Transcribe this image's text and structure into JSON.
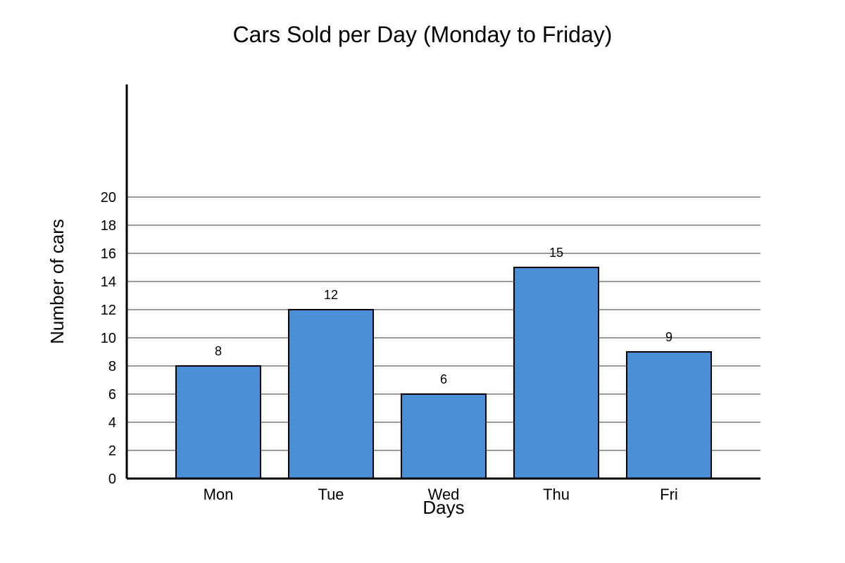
{
  "chart_data": {
    "type": "bar",
    "title": "Cars Sold per Day (Monday to Friday)",
    "xlabel": "Days",
    "ylabel": "Number of cars",
    "categories": [
      "Mon",
      "Tue",
      "Wed",
      "Thu",
      "Fri"
    ],
    "values": [
      8,
      12,
      6,
      15,
      9
    ],
    "ylim": [
      0,
      20
    ],
    "yticks": [
      0,
      2,
      4,
      6,
      8,
      10,
      12,
      14,
      16,
      18,
      20
    ],
    "grid": true,
    "bar_color": "#4a8fd8",
    "bar_edge_color": "#000000",
    "grid_color": "#777777"
  }
}
